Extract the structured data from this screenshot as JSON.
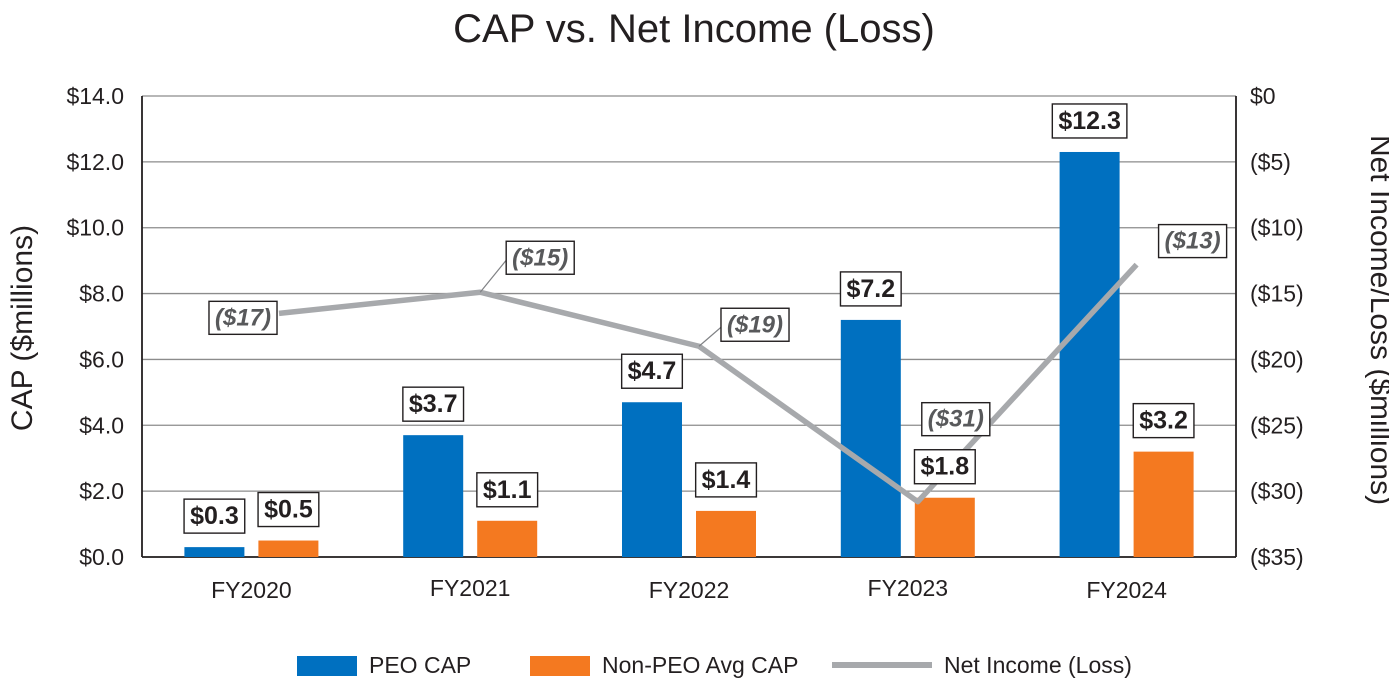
{
  "chart_data": {
    "type": "bar",
    "title": "CAP vs. Net Income (Loss)",
    "ylabel": "CAP ($millions)",
    "y2label": "Net Income/Loss ($millions)",
    "ylim": [
      0,
      14
    ],
    "y2lim": [
      -35,
      0
    ],
    "yticks": [
      "$0.0",
      "$2.0",
      "$4.0",
      "$6.0",
      "$8.0",
      "$10.0",
      "$12.0",
      "$14.0"
    ],
    "y2ticks": [
      "($35)",
      "($30)",
      "($25)",
      "($20)",
      "($15)",
      "($10)",
      "($5)",
      "$0"
    ],
    "categories": [
      "FY2020",
      "FY2021",
      "FY2022",
      "FY2023",
      "FY2024"
    ],
    "series": [
      {
        "name": "PEO CAP",
        "kind": "bar",
        "axis": "left",
        "color": "#0070c0",
        "values": [
          0.3,
          3.7,
          4.7,
          7.2,
          12.3
        ],
        "labels": [
          "$0.3",
          "$3.7",
          "$4.7",
          "$7.2",
          "$12.3"
        ]
      },
      {
        "name": "Non-PEO Avg CAP",
        "kind": "bar",
        "axis": "left",
        "color": "#f47920",
        "values": [
          0.5,
          1.1,
          1.4,
          1.8,
          3.2
        ],
        "labels": [
          "$0.5",
          "$1.1",
          "$1.4",
          "$1.8",
          "$3.2"
        ]
      },
      {
        "name": "Net Income (Loss)",
        "kind": "line",
        "axis": "right",
        "color": "#a7a9ac",
        "values": [
          -16.5,
          -14.9,
          -19.0,
          -30.8,
          -12.8
        ],
        "labels": [
          "($17)",
          "($15)",
          "($19)",
          "($31)",
          "($13)"
        ]
      }
    ],
    "grid": true,
    "legend_position": "bottom"
  }
}
